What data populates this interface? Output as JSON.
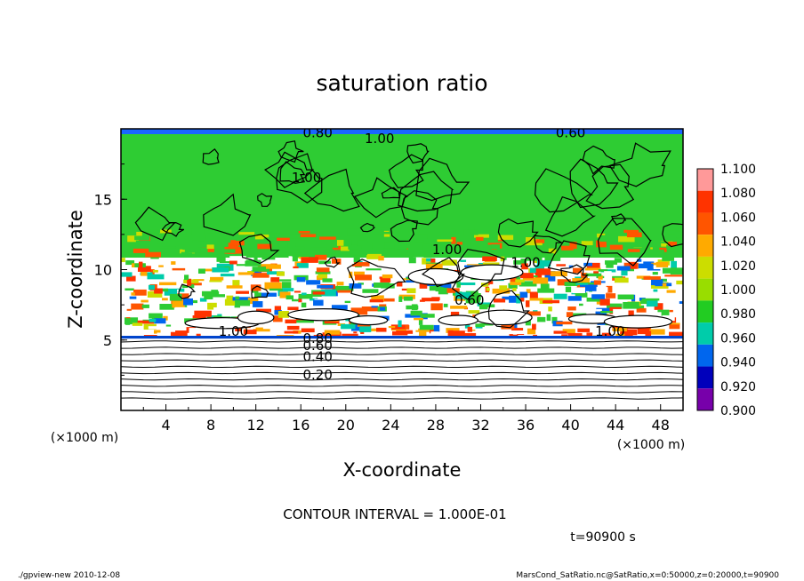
{
  "chart_data": {
    "type": "heatmap",
    "title": "saturation ratio",
    "xlabel": "X-coordinate",
    "ylabel": "Z-coordinate",
    "x_unit": "(×1000 m)",
    "y_unit": "(×1000 m)",
    "xlim": [
      0,
      50
    ],
    "ylim": [
      0,
      20
    ],
    "x_ticks": [
      "4",
      "8",
      "12",
      "16",
      "20",
      "24",
      "28",
      "32",
      "36",
      "40",
      "44",
      "48"
    ],
    "y_ticks": [
      "5",
      "10",
      "15"
    ],
    "colorbar": {
      "labels": [
        "1.100",
        "1.080",
        "1.060",
        "1.040",
        "1.020",
        "1.000",
        "0.980",
        "0.960",
        "0.940",
        "0.920",
        "0.900"
      ],
      "colors": [
        "#ff9999",
        "#ff3300",
        "#ff5500",
        "#ffaa00",
        "#ccdd00",
        "#99dd00",
        "#22cc22",
        "#00ccaa",
        "#0066ee",
        "#0000bb",
        "#7700aa"
      ]
    },
    "contour_labels": [
      "0.80",
      "1.00",
      "0.60",
      "1.00",
      "1.00",
      "1.00",
      "0.80",
      "0.60",
      "0.40",
      "0.20",
      "1.00",
      "1.00",
      "0.60"
    ],
    "contour_interval_text": "CONTOUR INTERVAL = 1.000E-01",
    "time_text": "t=90900 s"
  },
  "footer": {
    "left": "./gpview-new   2010-12-08",
    "right": "MarsCond_SatRatio.nc@SatRatio,x=0:50000,z=0:20000,t=90900"
  }
}
